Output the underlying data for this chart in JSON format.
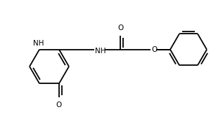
{
  "figure_width": 3.0,
  "figure_height": 2.0,
  "dpi": 100,
  "bg_color": "#ffffff",
  "line_color": "#000000",
  "lw": 1.3,
  "font_size": 7.5,
  "xlim": [
    0,
    300
  ],
  "ylim": [
    0,
    200
  ]
}
